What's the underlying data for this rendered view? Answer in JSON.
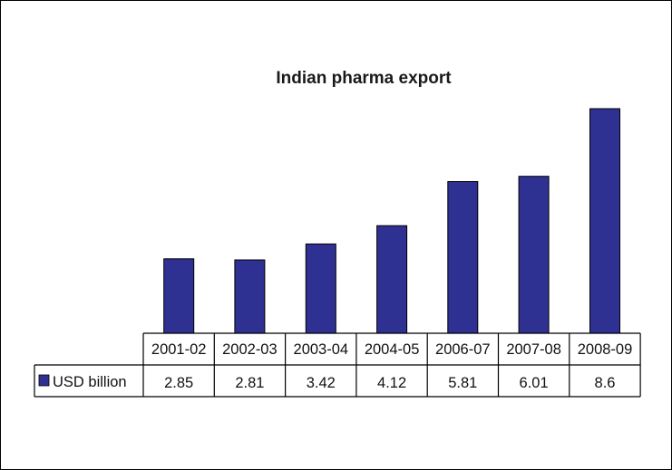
{
  "chart_data": {
    "type": "bar",
    "title": "Indian pharma export",
    "categories": [
      "2001-02",
      "2002-03",
      "2003-04",
      "2004-05",
      "2006-07",
      "2007-08",
      "2008-09"
    ],
    "series": [
      {
        "name": "USD billion",
        "values": [
          2.85,
          2.81,
          3.42,
          4.12,
          5.81,
          6.01,
          8.6
        ],
        "value_labels": [
          "2.85",
          "2.81",
          "3.42",
          "4.12",
          "5.81",
          "6.01",
          "8.6"
        ],
        "color": "#2E3192"
      }
    ],
    "data_table": true,
    "legend_key_in_table": true,
    "axis_visible": false,
    "grid": false
  }
}
